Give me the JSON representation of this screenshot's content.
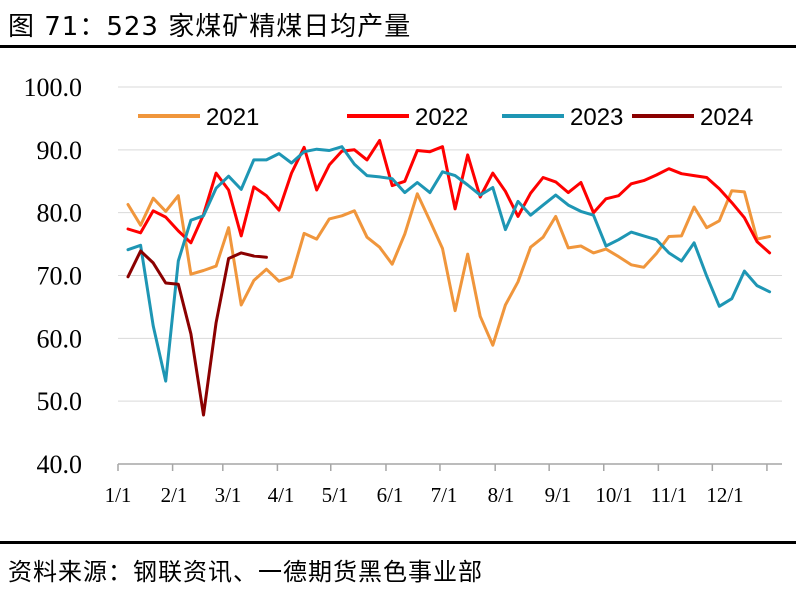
{
  "header": {
    "title": "图 71：523 家煤矿精煤日均产量"
  },
  "footer": {
    "source": "资料来源：钢联资讯、一德期货黑色事业部"
  },
  "chart_data": {
    "type": "line",
    "title": "",
    "xlabel": "",
    "ylabel": "",
    "ylim": [
      40,
      100
    ],
    "y_ticks": [
      "40.0",
      "50.0",
      "60.0",
      "70.0",
      "80.0",
      "90.0",
      "100.0"
    ],
    "x_ticks": [
      "1/1",
      "2/1",
      "3/1",
      "4/1",
      "5/1",
      "6/1",
      "7/1",
      "8/1",
      "9/1",
      "10/1",
      "11/1",
      "12/1"
    ],
    "x_unit": "week of year (1 = first week of January)",
    "grid": true,
    "legend_position": "top",
    "series": [
      {
        "name": "2021",
        "color": "#F0963C",
        "values": [
          81.3,
          78.0,
          82.3,
          80.2,
          82.7,
          70.2,
          70.8,
          71.5,
          77.6,
          65.3,
          69.2,
          71.0,
          69.1,
          69.8,
          76.7,
          75.8,
          79.0,
          79.5,
          80.3,
          76.1,
          74.5,
          71.8,
          76.6,
          83.0,
          78.7,
          74.3,
          64.4,
          73.4,
          63.5,
          58.9,
          65.3,
          69.0,
          74.5,
          76.1,
          79.4,
          74.4,
          74.7,
          73.6,
          74.2,
          73.0,
          71.7,
          71.3,
          73.5,
          76.2,
          76.3,
          80.9,
          77.6,
          78.7,
          83.5,
          83.3,
          75.8,
          76.2
        ]
      },
      {
        "name": "2022",
        "color": "#FF0000",
        "values": [
          77.4,
          76.8,
          80.3,
          79.3,
          77.1,
          75.2,
          79.7,
          86.3,
          83.6,
          76.3,
          84.1,
          82.7,
          80.4,
          86.3,
          90.4,
          83.6,
          87.6,
          89.8,
          90.0,
          88.4,
          91.5,
          84.3,
          85.0,
          89.9,
          89.7,
          90.5,
          80.6,
          89.2,
          82.5,
          86.3,
          83.4,
          79.4,
          83.1,
          85.6,
          84.9,
          83.2,
          84.8,
          80.0,
          82.2,
          82.7,
          84.6,
          85.1,
          86.0,
          87.0,
          86.2,
          85.9,
          85.6,
          83.8,
          81.6,
          79.2,
          75.4,
          73.6
        ]
      },
      {
        "name": "2023",
        "color": "#1E96B4",
        "values": [
          74.1,
          74.8,
          62.0,
          53.2,
          72.3,
          78.8,
          79.5,
          83.9,
          85.8,
          83.7,
          88.4,
          88.4,
          89.4,
          87.9,
          89.7,
          90.1,
          89.9,
          90.5,
          87.7,
          85.9,
          85.7,
          85.4,
          83.2,
          84.8,
          83.2,
          86.5,
          85.9,
          84.4,
          82.8,
          84.0,
          77.3,
          81.8,
          79.6,
          81.2,
          82.8,
          81.2,
          80.2,
          79.6,
          74.7,
          75.7,
          76.9,
          76.3,
          75.7,
          73.6,
          72.3,
          75.2,
          69.9,
          65.1,
          66.3,
          70.7,
          68.4,
          67.4
        ]
      },
      {
        "name": "2024",
        "color": "#8B0000",
        "values": [
          69.8,
          73.9,
          72.0,
          68.8,
          68.6,
          60.7,
          47.8,
          62.5,
          72.7,
          73.6,
          73.1,
          72.9
        ]
      }
    ]
  }
}
